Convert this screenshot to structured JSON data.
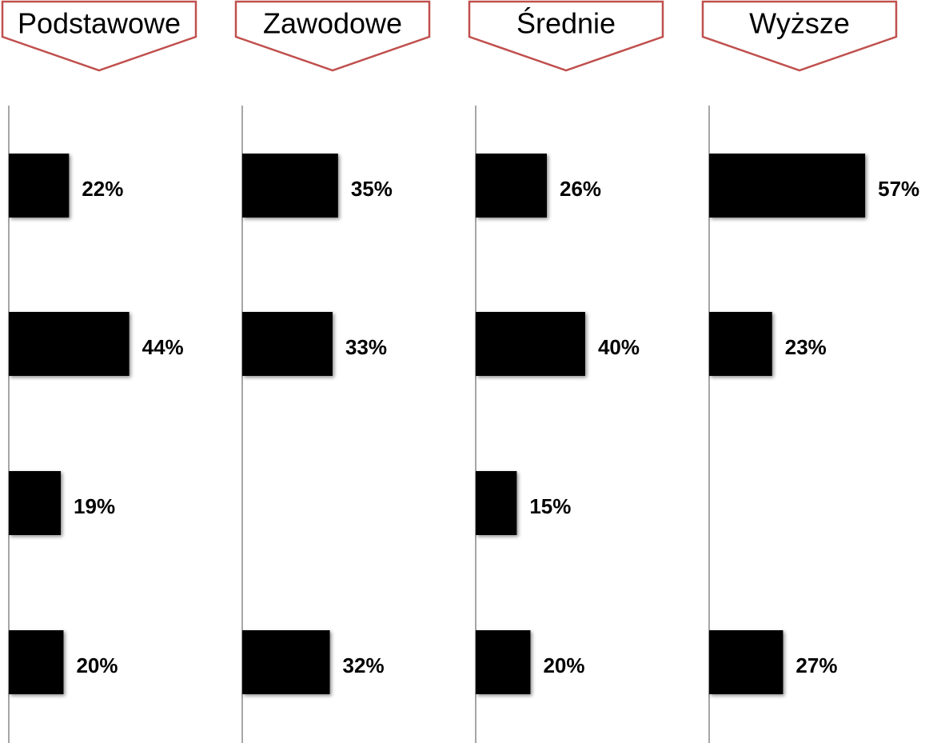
{
  "chart_data": [
    {
      "type": "bar",
      "title": "Podstawowe",
      "categories": [
        null,
        null,
        null,
        null
      ],
      "values": [
        22,
        44,
        19,
        20
      ],
      "value_labels": [
        "22%",
        "44%",
        "19%",
        "20%"
      ],
      "xlim": [
        0,
        85
      ],
      "color": "#000000"
    },
    {
      "type": "bar",
      "title": "Zawodowe",
      "categories": [
        null,
        null,
        null,
        null
      ],
      "values": [
        35,
        33,
        null,
        32
      ],
      "value_labels": [
        "35%",
        "33%",
        null,
        "32%"
      ],
      "xlim": [
        0,
        85
      ],
      "color": "#000000"
    },
    {
      "type": "bar",
      "title": "Średnie",
      "categories": [
        null,
        null,
        null,
        null
      ],
      "values": [
        26,
        40,
        15,
        20
      ],
      "value_labels": [
        "26%",
        "40%",
        "15%",
        "20%"
      ],
      "xlim": [
        0,
        85
      ],
      "color": "#000000"
    },
    {
      "type": "bar",
      "title": "Wyższe",
      "categories": [
        null,
        null,
        null,
        null
      ],
      "values": [
        57,
        23,
        null,
        27
      ],
      "value_labels": [
        "57%",
        "23%",
        null,
        "27%"
      ],
      "xlim": [
        0,
        85
      ],
      "color": "#000000"
    }
  ]
}
